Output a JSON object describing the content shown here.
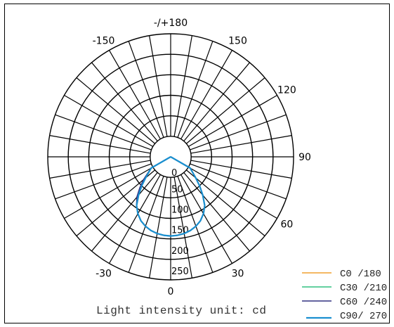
{
  "chart_data": {
    "type": "polar",
    "angle_labels": [
      {
        "angle": 180,
        "text": "-/+180"
      },
      {
        "angle": -150,
        "text": "-150"
      },
      {
        "angle": 150,
        "text": "150"
      },
      {
        "angle": 120,
        "text": "120"
      },
      {
        "angle": 90,
        "text": "90"
      },
      {
        "angle": 60,
        "text": "60"
      },
      {
        "angle": 30,
        "text": "30"
      },
      {
        "angle": -30,
        "text": "-30"
      },
      {
        "angle": 0,
        "text": "0"
      }
    ],
    "radial_ticks": [
      0,
      50,
      100,
      150,
      200,
      250
    ],
    "radial_max": 250,
    "angle_step": 10,
    "unit_label": "Light intensity unit: cd",
    "series": [
      {
        "name": "C0 /180",
        "color": "#f0a030"
      },
      {
        "name": "C30 /210",
        "color": "#30c080"
      },
      {
        "name": "C60 /240",
        "color": "#303080"
      },
      {
        "name": "C90/ 270",
        "color": "#1a8fd0"
      }
    ],
    "curve": {
      "angles": [
        -90,
        -70,
        -60,
        -50,
        -45,
        -40,
        -35,
        -30,
        -25,
        -20,
        -15,
        -10,
        -5,
        0,
        5,
        10,
        15,
        20,
        25,
        30,
        35,
        40,
        45,
        50,
        60,
        70,
        90
      ],
      "values": [
        0,
        0,
        55,
        80,
        100,
        122,
        145,
        160,
        172,
        180,
        186,
        190,
        192,
        193,
        192,
        190,
        186,
        180,
        172,
        160,
        145,
        122,
        100,
        80,
        55,
        0,
        0
      ]
    }
  }
}
